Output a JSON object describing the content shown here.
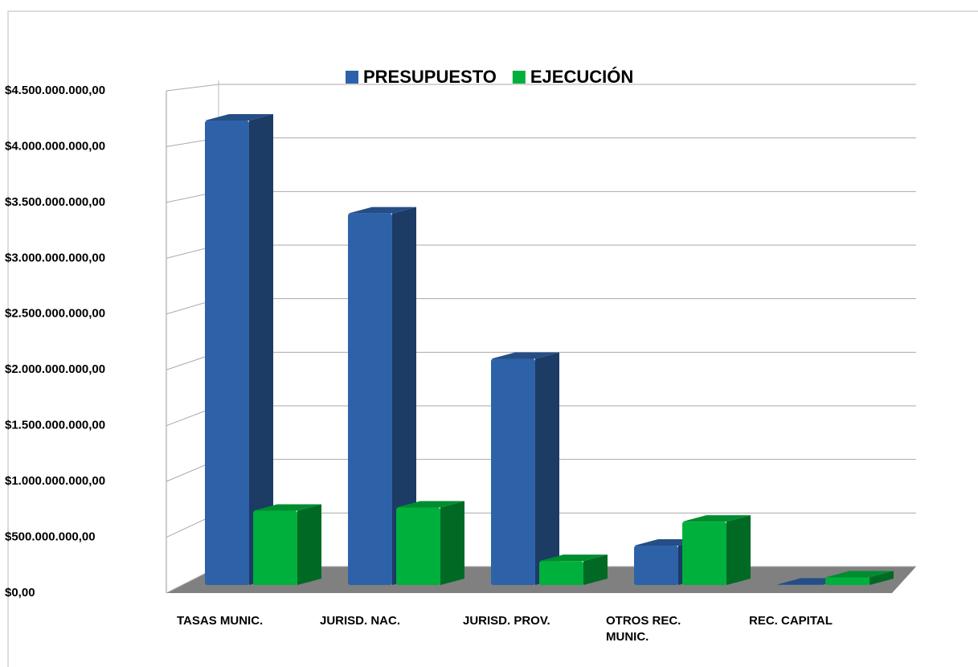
{
  "chart_data": {
    "type": "bar3d",
    "categories": [
      "TASAS MUNIC.",
      "JURISD. NAC.",
      "JURISD. PROV.",
      "OTROS REC. MUNIC.",
      "REC. CAPITAL"
    ],
    "series": [
      {
        "name": "PRESUPUESTO",
        "color": "#2e62a8",
        "values": [
          4250000000,
          3400000000,
          2070000000,
          360000000,
          5000000
        ]
      },
      {
        "name": "EJECUCIÓN",
        "color": "#00b03c",
        "values": [
          680000000,
          710000000,
          220000000,
          580000000,
          70000000
        ]
      }
    ],
    "ylim": [
      0,
      4500000000
    ],
    "yticks": [
      {
        "value": 0,
        "label": "$0,00"
      },
      {
        "value": 500000000,
        "label": "$500.000.000,00"
      },
      {
        "value": 1000000000,
        "label": "$1.000.000.000,00"
      },
      {
        "value": 1500000000,
        "label": "$1.500.000.000,00"
      },
      {
        "value": 2000000000,
        "label": "$2.000.000.000,00"
      },
      {
        "value": 2500000000,
        "label": "$2.500.000.000,00"
      },
      {
        "value": 3000000000,
        "label": "$3.000.000.000,00"
      },
      {
        "value": 3500000000,
        "label": "$3.500.000.000,00"
      },
      {
        "value": 4000000000,
        "label": "$4.000.000.000,00"
      },
      {
        "value": 4500000000,
        "label": "$4.500.000.000,00"
      }
    ],
    "grid": true,
    "legend": "top"
  }
}
